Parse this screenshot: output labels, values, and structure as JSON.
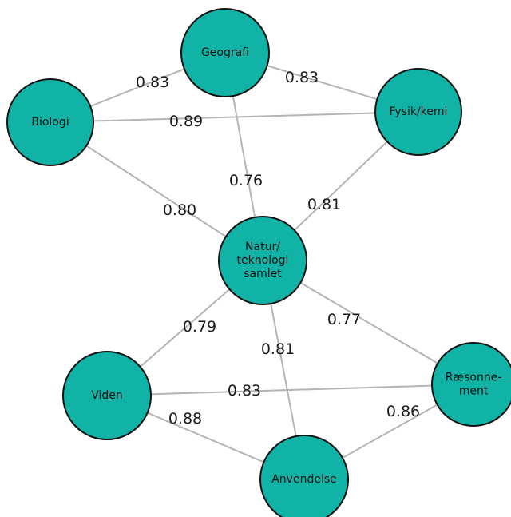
{
  "colors": {
    "node_fill": "#11b3a6",
    "node_stroke": "#111111",
    "edge": "#b4b4b4",
    "label_text": "#1a1a1a"
  },
  "nodes": [
    {
      "id": "geografi",
      "lines": [
        "Geografi"
      ]
    },
    {
      "id": "biologi",
      "lines": [
        "Biologi"
      ]
    },
    {
      "id": "fysik",
      "lines": [
        "Fysik/kemi"
      ]
    },
    {
      "id": "natur",
      "lines": [
        "Natur/",
        "teknologi",
        "samlet"
      ]
    },
    {
      "id": "viden",
      "lines": [
        "Viden"
      ]
    },
    {
      "id": "raesonnement",
      "lines": [
        "Ræsonne-",
        "ment"
      ]
    },
    {
      "id": "anvendelse",
      "lines": [
        "Anvendelse"
      ]
    }
  ],
  "edges": [
    {
      "from": "biologi",
      "to": "geografi",
      "label": "0.83"
    },
    {
      "from": "geografi",
      "to": "fysik",
      "label": "0.83"
    },
    {
      "from": "biologi",
      "to": "fysik",
      "label": "0.89"
    },
    {
      "from": "geografi",
      "to": "natur",
      "label": "0.76"
    },
    {
      "from": "biologi",
      "to": "natur",
      "label": "0.80"
    },
    {
      "from": "fysik",
      "to": "natur",
      "label": "0.81"
    },
    {
      "from": "natur",
      "to": "viden",
      "label": "0.79"
    },
    {
      "from": "natur",
      "to": "anvendelse",
      "label": "0.81"
    },
    {
      "from": "natur",
      "to": "raesonnement",
      "label": "0.77"
    },
    {
      "from": "viden",
      "to": "raesonnement",
      "label": "0.83"
    },
    {
      "from": "viden",
      "to": "anvendelse",
      "label": "0.88"
    },
    {
      "from": "anvendelse",
      "to": "raesonnement",
      "label": "0.86"
    }
  ]
}
